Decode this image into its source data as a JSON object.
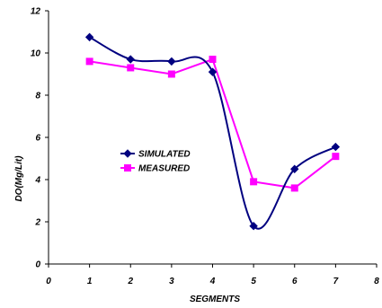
{
  "chart_data": {
    "type": "line",
    "xlabel": "SEGMENTS",
    "ylabel": "DO(Mg/Lit)",
    "xlim": [
      0,
      8
    ],
    "ylim": [
      0,
      12
    ],
    "xticks": [
      0,
      1,
      2,
      3,
      4,
      5,
      6,
      7,
      8
    ],
    "yticks": [
      0,
      2,
      4,
      6,
      8,
      10,
      12
    ],
    "grid": false,
    "legend_position": "middle-left",
    "x": [
      1,
      2,
      3,
      4,
      5,
      6,
      7
    ],
    "series": [
      {
        "name": "SIMULATED",
        "values": [
          10.75,
          9.7,
          9.6,
          9.1,
          1.8,
          4.5,
          5.55
        ],
        "color": "#000080",
        "marker": "diamond",
        "smooth": true
      },
      {
        "name": "MEASURED",
        "values": [
          9.6,
          9.3,
          9.0,
          9.7,
          3.9,
          3.6,
          5.1
        ],
        "color": "#ff00ff",
        "marker": "square",
        "smooth": false
      }
    ]
  }
}
